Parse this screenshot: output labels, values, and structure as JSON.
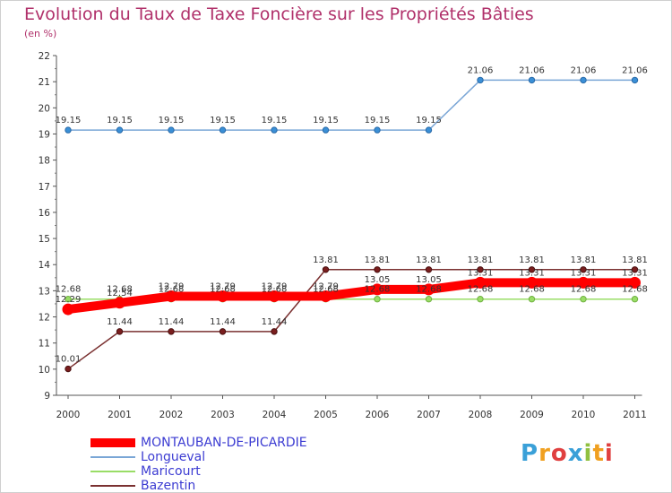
{
  "chart_data": {
    "type": "line",
    "title": "Evolution du Taux de Taxe Foncière sur les Propriétés Bâties",
    "subtitle": "(en %)",
    "xlabel": "",
    "ylabel": "",
    "categories": [
      "2000",
      "2001",
      "2002",
      "2003",
      "2004",
      "2005",
      "2006",
      "2007",
      "2008",
      "2009",
      "2010",
      "2011"
    ],
    "ylim": [
      9,
      22
    ],
    "yticks": [
      "9",
      "10",
      "11",
      "12",
      "13",
      "14",
      "15",
      "16",
      "17",
      "18",
      "19",
      "20",
      "21",
      "22"
    ],
    "grid": false,
    "legend_position": "bottom-left",
    "series": [
      {
        "name": "MONTAUBAN-DE-PICARDIE",
        "color": "#ff0000",
        "values": [
          12.29,
          12.54,
          12.79,
          12.79,
          12.79,
          12.79,
          13.05,
          13.05,
          13.31,
          13.31,
          13.31,
          13.31
        ],
        "labels": [
          "12.29",
          "12.54",
          "12.79",
          "12.79",
          "12.79",
          "12.79",
          "13.05",
          "13.05",
          "13.31",
          "13.31",
          "13.31",
          "13.31"
        ]
      },
      {
        "name": "Longueval",
        "color": "#7aa6d6",
        "values": [
          19.15,
          19.15,
          19.15,
          19.15,
          19.15,
          19.15,
          19.15,
          19.15,
          21.06,
          21.06,
          21.06,
          21.06
        ],
        "labels": [
          "19.15",
          "19.15",
          "19.15",
          "19.15",
          "19.15",
          "19.15",
          "19.15",
          "19.15",
          "21.06",
          "21.06",
          "21.06",
          "21.06"
        ]
      },
      {
        "name": "Maricourt",
        "color": "#99dd66",
        "values": [
          12.68,
          12.68,
          12.68,
          12.68,
          12.68,
          12.68,
          12.68,
          12.68,
          12.68,
          12.68,
          12.68,
          12.68
        ],
        "labels": [
          "12.68",
          "12.68",
          "12.68",
          "12.68",
          "12.68",
          "12.68",
          "12.68",
          "12.68",
          "12.68",
          "12.68",
          "12.68",
          "12.68"
        ]
      },
      {
        "name": "Bazentin",
        "color": "#7a3030",
        "values": [
          10.01,
          11.44,
          11.44,
          11.44,
          11.44,
          13.81,
          13.81,
          13.81,
          13.81,
          13.81,
          13.81,
          13.81
        ],
        "labels": [
          "10.01",
          "11.44",
          "11.44",
          "11.44",
          "11.44",
          "13.81",
          "13.81",
          "13.81",
          "13.81",
          "13.81",
          "13.81",
          "13.81"
        ]
      }
    ]
  },
  "legend": {
    "items": [
      "MONTAUBAN-DE-PICARDIE",
      "Longueval",
      "Maricourt",
      "Bazentin"
    ]
  },
  "logo": {
    "text": "Proxiti",
    "letters": [
      "P",
      "r",
      "o",
      "x",
      "i",
      "t",
      "i"
    ],
    "colors": [
      "#3aa0d8",
      "#f0a020",
      "#e04040",
      "#3aa0d8",
      "#90c040",
      "#f0a020",
      "#e04040"
    ]
  }
}
